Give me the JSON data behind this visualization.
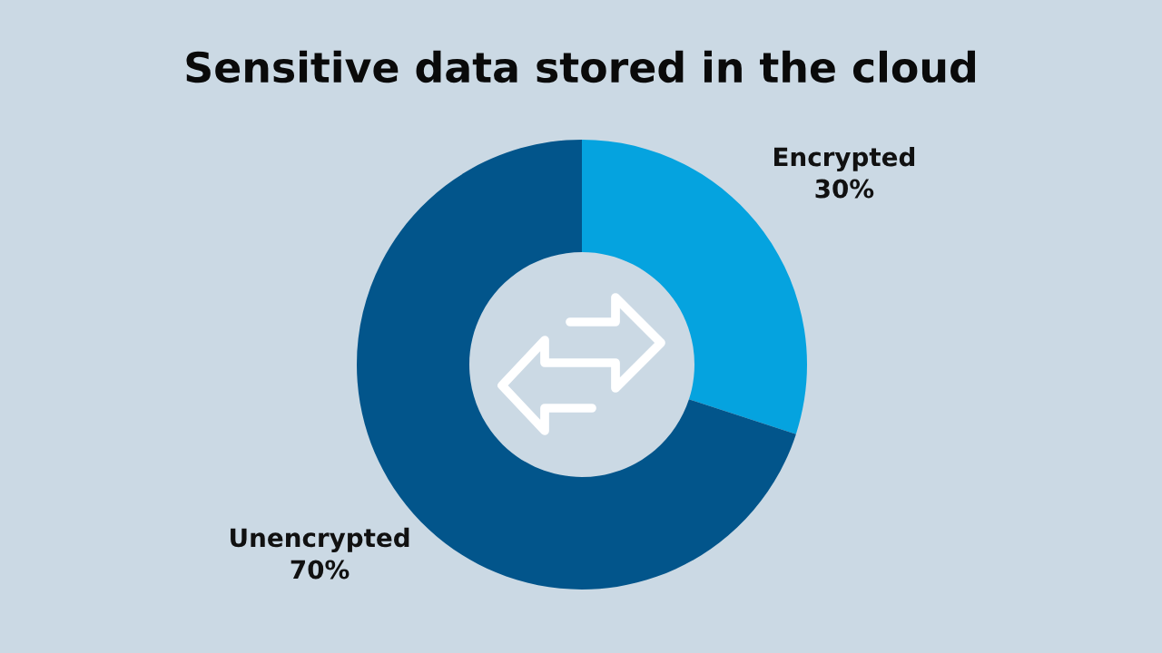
{
  "chart_data": {
    "type": "donut",
    "title": "Sensitive data stored in the cloud",
    "categories": [
      "Encrypted",
      "Unencrypted"
    ],
    "values": [
      30,
      70
    ],
    "colors": [
      "#05a3df",
      "#02558b"
    ],
    "value_labels": [
      "30%",
      "70%"
    ]
  }
}
